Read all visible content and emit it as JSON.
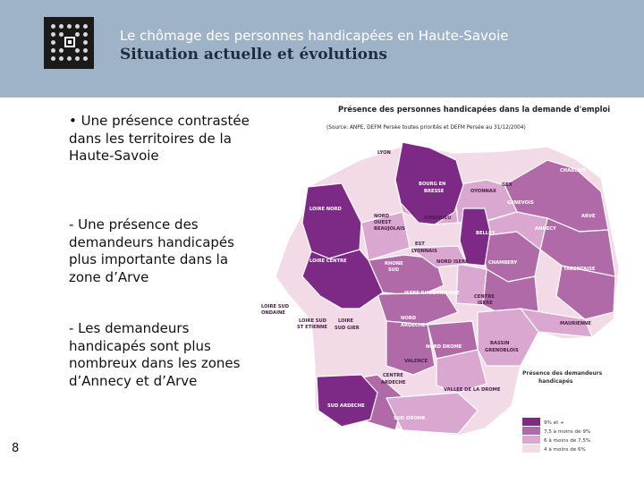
{
  "header": {
    "subtitle": "Le chômage des personnes handicapées en Haute-Savoie",
    "title": "Situation actuelle et évolutions"
  },
  "bullets": [
    "• Une présence contrastée dans les territoires de la Haute-Savoie",
    "- Une présence des demandeurs handicapés plus importante dans la zone d’Arve",
    "- Les demandeurs handicapés sont plus nombreux dans les zones d’Annecy et d’Arve"
  ],
  "page_number": "8",
  "map": {
    "title": "Présence des personnes handicapées dans la demande d'emploi",
    "source": "(Source: ANPE, DEFM Persée toutes priorités et DEFM Persée au 31/12/2004)",
    "colors": {
      "dark": "#7d2a86",
      "medium": "#b16aa8",
      "light": "#d9a7cf",
      "pale": "#f2dbe6"
    },
    "zones": [
      {
        "label": "LYON"
      },
      {
        "label": "BOURG EN"
      },
      {
        "label": "BRESSE"
      },
      {
        "label": "OYONNAX"
      },
      {
        "label": "GEX"
      },
      {
        "label": "CHABLAIS"
      },
      {
        "label": "GENEVOIS"
      },
      {
        "label": "ARVE"
      },
      {
        "label": "LOIRE NORD"
      },
      {
        "label": "NORD"
      },
      {
        "label": "OUEST"
      },
      {
        "label": "BEAUJOLAIS"
      },
      {
        "label": "AMBERIEU"
      },
      {
        "label": "BELLEY"
      },
      {
        "label": "ANNECY"
      },
      {
        "label": "EST"
      },
      {
        "label": "LYONNAIS"
      },
      {
        "label": "LOIRE CENTRE"
      },
      {
        "label": "RHONE"
      },
      {
        "label": "SUD"
      },
      {
        "label": "NORD ISERE"
      },
      {
        "label": "CHAMBERY"
      },
      {
        "label": "TARENTAISE"
      },
      {
        "label": "ISERE RHODANIENNE"
      },
      {
        "label": "CENTRE"
      },
      {
        "label": "ISERE"
      },
      {
        "label": "LOIRE SUD"
      },
      {
        "label": "ONDAINE"
      },
      {
        "label": "LOIRE SUD"
      },
      {
        "label": "ST ETIENNE"
      },
      {
        "label": "LOIRE"
      },
      {
        "label": "SUD GIER"
      },
      {
        "label": "NORD"
      },
      {
        "label": "ARDECHE"
      },
      {
        "label": "NORD DROME"
      },
      {
        "label": "MAURIENNE"
      },
      {
        "label": "BASSIN"
      },
      {
        "label": "GRENOBLOIS"
      },
      {
        "label": "VALENCE"
      },
      {
        "label": "CENTRE"
      },
      {
        "label": "ARDECHE"
      },
      {
        "label": "VALLEE DE LA DROME"
      },
      {
        "label": "SUD ARDECHE"
      },
      {
        "label": "SUD DROME"
      }
    ],
    "legend": {
      "title_line1": "Présence des demandeurs",
      "title_line2": "handicapés",
      "items": [
        {
          "text": "9% et +",
          "color": "#7d2a86"
        },
        {
          "text": "7,5 à moins de 9%",
          "color": "#b16aa8"
        },
        {
          "text": "6 à moins de 7,5%",
          "color": "#d9a7cf"
        },
        {
          "text": "4 à moins de 6%",
          "color": "#f2dbe6"
        }
      ]
    }
  }
}
